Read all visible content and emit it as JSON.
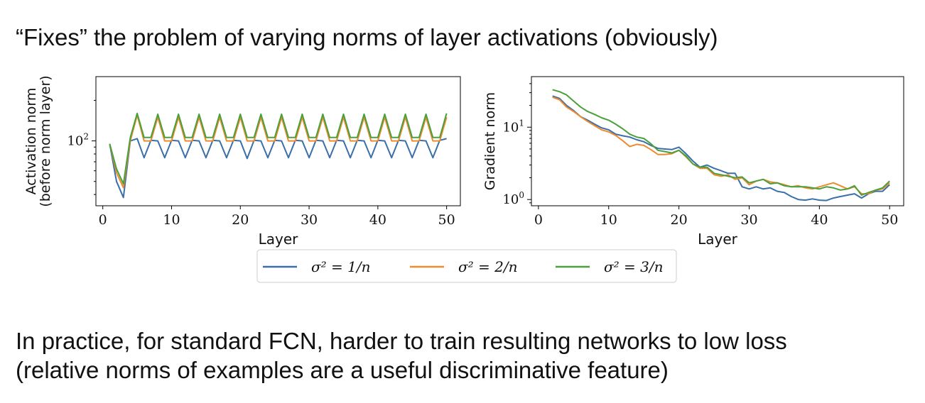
{
  "slide": {
    "title": "“Fixes” the problem of varying norms of layer activations (obviously)",
    "body_lines": [
      "In practice, for standard FCN, harder to train resulting networks to low loss",
      "(relative norms of examples are a useful discriminative feature)"
    ]
  },
  "colors": {
    "blue": "#3a6fa8",
    "orange": "#ef8a2e",
    "green": "#4aa03c",
    "axis": "#000000"
  },
  "chart_data": [
    {
      "type": "line",
      "xlabel": "Layer",
      "ylabel": [
        "Activation norm",
        "(before norm layer)"
      ],
      "y_scale": "log",
      "xlim": [
        -1,
        52
      ],
      "ylim": [
        33,
        300
      ],
      "x_ticks": [
        0,
        10,
        20,
        30,
        40,
        50
      ],
      "y_tick_labels": [
        {
          "value": 100,
          "base": "10",
          "exp": "2"
        }
      ],
      "y_minor_ticks": [
        40,
        50,
        60,
        70,
        80,
        90,
        200
      ],
      "x": [
        1,
        2,
        3,
        4,
        5,
        6,
        7,
        8,
        9,
        10,
        11,
        12,
        13,
        14,
        15,
        16,
        17,
        18,
        19,
        20,
        21,
        22,
        23,
        24,
        25,
        26,
        27,
        28,
        29,
        30,
        31,
        32,
        33,
        34,
        35,
        36,
        37,
        38,
        39,
        40,
        41,
        42,
        43,
        44,
        45,
        46,
        47,
        48,
        49,
        50
      ],
      "series": [
        {
          "name": "σ² = 1/n",
          "color": "#3a6fa8",
          "values": [
            95,
            50,
            38,
            100,
            104,
            75,
            101,
            100,
            75,
            101,
            100,
            75,
            101,
            100,
            75,
            101,
            100,
            75,
            101,
            100,
            74,
            101,
            100,
            75,
            101,
            100,
            75,
            101,
            100,
            75,
            101,
            100,
            75,
            101,
            100,
            75,
            101,
            100,
            75,
            101,
            100,
            75,
            101,
            100,
            75,
            101,
            100,
            75,
            101,
            104
          ]
        },
        {
          "name": "σ² = 2/n",
          "color": "#ef8a2e",
          "values": [
            95,
            58,
            45,
            100,
            155,
            100,
            100,
            150,
            100,
            100,
            150,
            100,
            100,
            150,
            100,
            100,
            150,
            100,
            100,
            150,
            100,
            100,
            150,
            100,
            100,
            150,
            100,
            100,
            150,
            100,
            100,
            150,
            100,
            100,
            150,
            100,
            100,
            150,
            100,
            100,
            150,
            100,
            100,
            150,
            100,
            100,
            150,
            100,
            100,
            150
          ]
        },
        {
          "name": "σ² = 3/n",
          "color": "#4aa03c",
          "values": [
            95,
            62,
            48,
            106,
            160,
            106,
            106,
            158,
            106,
            106,
            158,
            106,
            106,
            158,
            106,
            106,
            158,
            106,
            106,
            158,
            106,
            106,
            158,
            106,
            106,
            158,
            106,
            106,
            158,
            106,
            106,
            158,
            106,
            106,
            158,
            106,
            106,
            158,
            106,
            106,
            158,
            106,
            106,
            158,
            106,
            106,
            158,
            106,
            106,
            160
          ]
        }
      ]
    },
    {
      "type": "line",
      "xlabel": "Layer",
      "ylabel": [
        "Gradient norm"
      ],
      "y_scale": "log",
      "xlim": [
        -1,
        52
      ],
      "ylim": [
        0.82,
        50
      ],
      "x_ticks": [
        0,
        10,
        20,
        30,
        40,
        50
      ],
      "y_tick_labels": [
        {
          "value": 1,
          "base": "10",
          "exp": "0"
        },
        {
          "value": 10,
          "base": "10",
          "exp": "1"
        }
      ],
      "y_minor_ticks": [
        0.9,
        2,
        3,
        4,
        5,
        6,
        7,
        8,
        9,
        20,
        30,
        40
      ],
      "x": [
        2,
        3,
        4,
        5,
        6,
        7,
        8,
        9,
        10,
        11,
        12,
        13,
        14,
        15,
        16,
        17,
        18,
        19,
        20,
        21,
        22,
        23,
        24,
        25,
        26,
        27,
        28,
        29,
        30,
        31,
        32,
        33,
        34,
        35,
        36,
        37,
        38,
        39,
        40,
        41,
        42,
        43,
        44,
        45,
        46,
        47,
        48,
        49,
        50
      ],
      "series": [
        {
          "name": "σ² = 1/n",
          "color": "#3a6fa8",
          "values": [
            27,
            25,
            20,
            17,
            14,
            12.5,
            11,
            9.8,
            9.2,
            8,
            7.6,
            7.3,
            6.7,
            6.3,
            5.6,
            5.1,
            5,
            4.9,
            5.3,
            4.3,
            3.4,
            2.8,
            3,
            2.7,
            2.5,
            2.3,
            2.3,
            1.5,
            1.4,
            1.5,
            1.4,
            1.45,
            1.3,
            1.25,
            1.1,
            1,
            0.98,
            1.02,
            0.98,
            0.97,
            1.05,
            1.1,
            1.15,
            1.2,
            1.05,
            1.2,
            1.3,
            1.3,
            1.6
          ]
        },
        {
          "name": "σ² = 2/n",
          "color": "#ef8a2e",
          "values": [
            26,
            24,
            19,
            16.5,
            14,
            12,
            10.5,
            9.2,
            8.6,
            7.7,
            6.5,
            5.4,
            5.8,
            5.6,
            4.9,
            4.2,
            4.2,
            4.3,
            4.8,
            3.9,
            3.1,
            2.7,
            2.7,
            2.2,
            2.1,
            2.2,
            1.9,
            2,
            1.6,
            1.8,
            1.9,
            1.75,
            1.7,
            1.6,
            1.5,
            1.55,
            1.45,
            1.4,
            1.5,
            1.6,
            1.7,
            1.55,
            1.4,
            1.5,
            1.2,
            1.2,
            1.35,
            1.4,
            1.7
          ]
        },
        {
          "name": "σ² = 3/n",
          "color": "#4aa03c",
          "values": [
            33,
            31,
            28,
            23,
            19,
            16.5,
            15,
            13.5,
            12.5,
            11,
            9.5,
            8,
            7.3,
            7,
            5.9,
            4.8,
            4.6,
            4.4,
            4.8,
            4,
            3.1,
            2.8,
            2.8,
            2.3,
            2.2,
            2.1,
            2,
            2.05,
            1.7,
            1.8,
            1.9,
            1.65,
            1.7,
            1.55,
            1.5,
            1.5,
            1.5,
            1.45,
            1.4,
            1.5,
            1.45,
            1.35,
            1.4,
            1.55,
            1.15,
            1.25,
            1.35,
            1.45,
            1.8
          ]
        }
      ]
    }
  ]
}
